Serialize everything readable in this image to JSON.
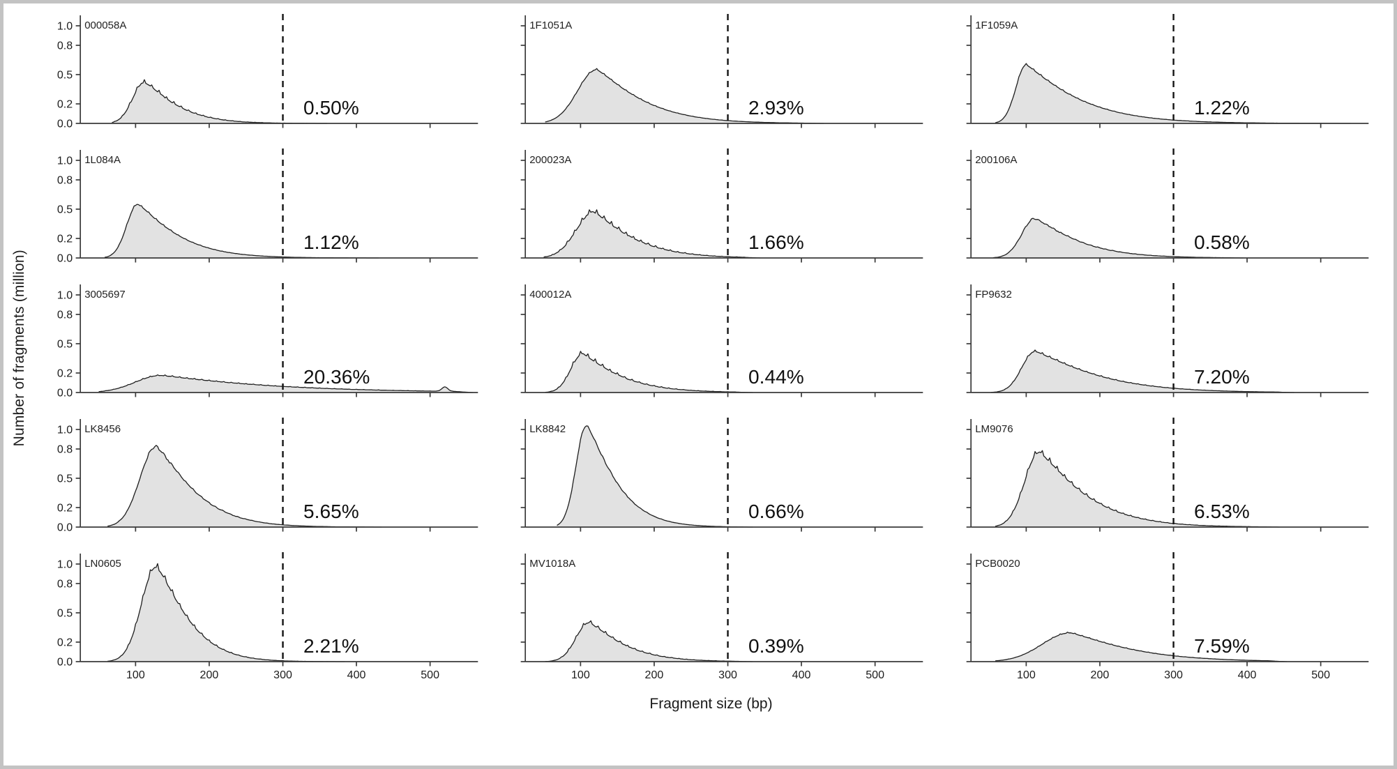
{
  "figure": {
    "xlabel": "Fragment size (bp)",
    "ylabel": "Number of fragments (million)",
    "frame_color": "#c3c3c3",
    "curve_fill": "#e2e2e2",
    "curve_stroke": "#1f1f1f",
    "spine_color": "#3a3a3a",
    "cutoff_color": "#141414",
    "text_color": "#1c1c1c"
  },
  "chart_data": {
    "type": "area",
    "title": "",
    "xlabel": "Fragment size (bp)",
    "ylabel": "Number of fragments (million)",
    "layout": "5 rows x 3 columns, shared x and y axes",
    "grid": "off",
    "legend": "none",
    "xlim": [
      25,
      565
    ],
    "ylim": [
      0,
      1.1
    ],
    "x_ticks": [
      "100",
      "200",
      "300",
      "400",
      "500"
    ],
    "x_tick_values": [
      100,
      200,
      300,
      400,
      500
    ],
    "y_ticks": [
      "0.0",
      "0.2",
      "0.5",
      "0.8",
      "1.0"
    ],
    "y_tick_values": [
      0.0,
      0.2,
      0.5,
      0.8,
      1.0
    ],
    "cutoff_line": {
      "x": 300,
      "style": "dashed",
      "color": "#141414"
    },
    "panels": [
      {
        "sample": "000058A",
        "percent": "0.50%",
        "start_x": 68,
        "peak_x": 112,
        "peak_y": 0.42,
        "left_sigma": 16,
        "right_tau": 52,
        "tail_p": 1.25,
        "noise": 0.1,
        "end_x": 360
      },
      {
        "sample": "1F1051A",
        "percent": "2.93%",
        "start_x": 52,
        "peak_x": 122,
        "peak_y": 0.55,
        "left_sigma": 26,
        "right_tau": 72,
        "tail_p": 1.2,
        "noise": 0.03,
        "end_x": 430
      },
      {
        "sample": "1F1059A",
        "percent": "1.22%",
        "start_x": 58,
        "peak_x": 100,
        "peak_y": 0.6,
        "left_sigma": 14,
        "right_tau": 80,
        "tail_p": 1.15,
        "noise": 0.03,
        "end_x": 540
      },
      {
        "sample": "1L084A",
        "percent": "1.12%",
        "start_x": 58,
        "peak_x": 103,
        "peak_y": 0.55,
        "left_sigma": 15,
        "right_tau": 62,
        "tail_p": 1.2,
        "noise": 0.035,
        "end_x": 430
      },
      {
        "sample": "200023A",
        "percent": "1.66%",
        "start_x": 50,
        "peak_x": 118,
        "peak_y": 0.47,
        "left_sigma": 24,
        "right_tau": 62,
        "tail_p": 1.2,
        "noise": 0.12,
        "end_x": 345
      },
      {
        "sample": "200106A",
        "percent": "0.58%",
        "start_x": 55,
        "peak_x": 112,
        "peak_y": 0.4,
        "left_sigma": 18,
        "right_tau": 68,
        "tail_p": 1.2,
        "noise": 0.1,
        "end_x": 395
      },
      {
        "sample": "3005697",
        "percent": "20.36%",
        "start_x": 50,
        "peak_x": 135,
        "peak_y": 0.175,
        "left_sigma": 35,
        "right_tau": 160,
        "tail_p": 1.1,
        "noise": 0.06,
        "end_x": 558,
        "extra_spike": {
          "x": 520,
          "h": 0.045,
          "w": 4
        }
      },
      {
        "sample": "400012A",
        "percent": "0.44%",
        "start_x": 52,
        "peak_x": 103,
        "peak_y": 0.4,
        "left_sigma": 16,
        "right_tau": 58,
        "tail_p": 1.15,
        "noise": 0.11,
        "end_x": 335
      },
      {
        "sample": "FP9632",
        "percent": "7.20%",
        "start_x": 52,
        "peak_x": 112,
        "peak_y": 0.42,
        "left_sigma": 18,
        "right_tau": 95,
        "tail_p": 1.2,
        "noise": 0.04,
        "end_x": 465
      },
      {
        "sample": "LK8456",
        "percent": "5.65%",
        "start_x": 62,
        "peak_x": 128,
        "peak_y": 0.82,
        "left_sigma": 22,
        "right_tau": 62,
        "tail_p": 1.25,
        "noise": 0.07,
        "end_x": 435
      },
      {
        "sample": "LK8842",
        "percent": "0.66%",
        "start_x": 68,
        "peak_x": 108,
        "peak_y": 1.04,
        "left_sigma": 14,
        "right_tau": 48,
        "tail_p": 1.25,
        "noise": 0.05,
        "end_x": 335
      },
      {
        "sample": "LM9076",
        "percent": "6.53%",
        "start_x": 58,
        "peak_x": 118,
        "peak_y": 0.77,
        "left_sigma": 20,
        "right_tau": 72,
        "tail_p": 1.2,
        "noise": 0.07,
        "end_x": 445
      },
      {
        "sample": "LN0605",
        "percent": "2.21%",
        "start_x": 62,
        "peak_x": 128,
        "peak_y": 0.97,
        "left_sigma": 20,
        "right_tau": 52,
        "tail_p": 1.3,
        "noise": 0.05,
        "end_x": 385
      },
      {
        "sample": "MV1018A",
        "percent": "0.39%",
        "start_x": 52,
        "peak_x": 112,
        "peak_y": 0.4,
        "left_sigma": 18,
        "right_tau": 55,
        "tail_p": 1.2,
        "noise": 0.09,
        "end_x": 335
      },
      {
        "sample": "PCB0020",
        "percent": "7.59%",
        "start_x": 58,
        "peak_x": 160,
        "peak_y": 0.295,
        "left_sigma": 38,
        "right_tau": 95,
        "tail_p": 1.2,
        "noise": 0.03,
        "end_x": 455
      }
    ]
  }
}
